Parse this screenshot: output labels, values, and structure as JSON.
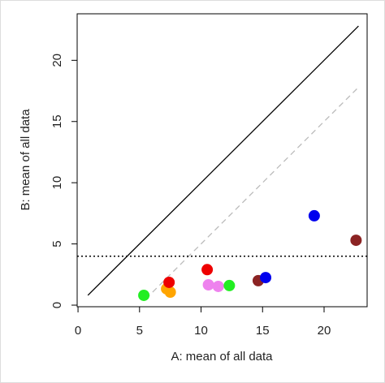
{
  "chart_data": {
    "type": "scatter",
    "x_label": "A: mean of all data",
    "y_label": "B: mean of all data",
    "x": [
      5.35,
      7.2,
      7.5,
      7.4,
      10.5,
      10.6,
      11.4,
      12.3,
      14.65,
      15.25,
      19.2,
      22.6
    ],
    "y": [
      0.8,
      1.33,
      1.06,
      1.86,
      2.9,
      1.66,
      1.53,
      1.6,
      2.0,
      2.25,
      7.3,
      5.3
    ],
    "colors": [
      "#22ee22",
      "#ffa500",
      "#ffa500",
      "#ee0000",
      "#ee0000",
      "#ee82ee",
      "#ee82ee",
      "#22ee22",
      "#8b2323",
      "#0000ee",
      "#0000ee",
      "#8b2323"
    ],
    "lines": [
      {
        "x": [
          0.8,
          22.8
        ],
        "y": [
          0.8,
          22.8
        ],
        "color": "#000000",
        "style": "solid"
      },
      {
        "x": [
          5.5,
          22.8
        ],
        "y": [
          0.5,
          17.8
        ],
        "color": "#bbbbbb",
        "style": "dashed"
      }
    ],
    "hline": {
      "y": 4,
      "color": "#000000",
      "style": "dotted"
    },
    "xlim": [
      -0.07,
      23.5
    ],
    "ylim": [
      -0.13,
      23.8
    ],
    "xticks": [
      0,
      5,
      10,
      15,
      20
    ],
    "yticks": [
      0,
      5,
      10,
      15,
      20
    ]
  }
}
